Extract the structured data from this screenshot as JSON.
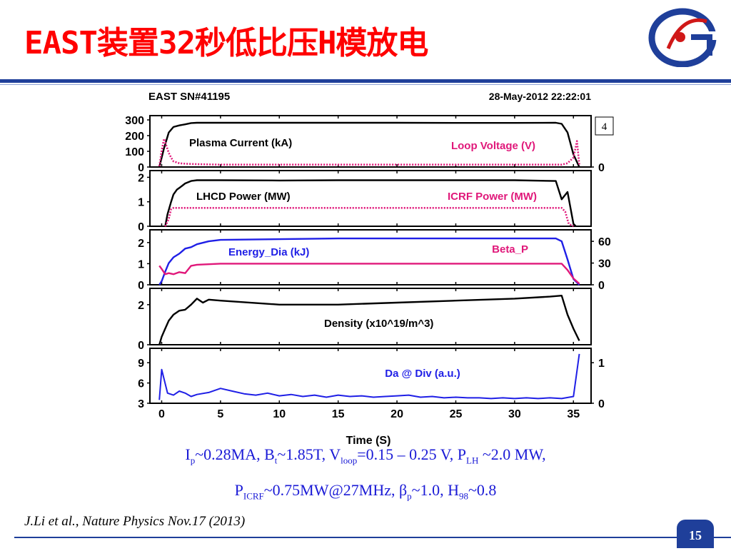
{
  "slide": {
    "title": "EAST装置32秒低比压H模放电",
    "page_number": "15",
    "citation": "J.Li et al., Nature Physics Nov.17 (2013)",
    "caption_line1": [
      {
        "t": "I"
      },
      {
        "t": "p",
        "sub": true
      },
      {
        "t": "~0.28MA, B"
      },
      {
        "t": "t",
        "sub": true
      },
      {
        "t": "~1.85T, V"
      },
      {
        "t": "loop",
        "sub": true
      },
      {
        "t": "=0.15 – 0.25 V, P"
      },
      {
        "t": "LH",
        "sub": true
      },
      {
        "t": " ~2.0 MW,"
      }
    ],
    "caption_line2": [
      {
        "t": "P"
      },
      {
        "t": "ICRF",
        "sub": true
      },
      {
        "t": "~0.75MW@27MHz, β"
      },
      {
        "t": "p",
        "sub": true
      },
      {
        "t": "~1.0, H"
      },
      {
        "t": "98",
        "sub": true
      },
      {
        "t": "~0.8"
      }
    ],
    "colors": {
      "title": "#ff0000",
      "accent": "#1f3f9a",
      "caption": "#1a1ad6",
      "black": "#000000",
      "magenta": "#e0187a",
      "blue": "#1f1fe6"
    }
  },
  "chart_data": {
    "type": "line",
    "header_left": "EAST SN#41195",
    "header_right": "28-May-2012 22:22:01",
    "corner_label": "4",
    "xlabel": "Time (S)",
    "xlim": [
      -1,
      36.5
    ],
    "x_ticks": [
      "0",
      "5",
      "10",
      "15",
      "20",
      "25",
      "30",
      "35"
    ],
    "panels": [
      {
        "left_ticks": [
          "300",
          "200",
          "100",
          "0"
        ],
        "left_range": [
          0,
          300
        ],
        "right_ticks": [
          "0"
        ],
        "right_range": [
          0,
          1
        ],
        "series": [
          {
            "name": "Plasma Current (kA)",
            "color": "#000000",
            "axis": "left",
            "style": "solid",
            "x": [
              -0.2,
              0.2,
              0.6,
              1.0,
              1.5,
              2.0,
              2.5,
              3.0,
              5,
              10,
              15,
              20,
              25,
              30,
              33.5,
              34.0,
              34.5,
              35.0,
              35.5
            ],
            "y": [
              0,
              120,
              220,
              255,
              265,
              272,
              280,
              282,
              282,
              282,
              282,
              282,
              281,
              281,
              282,
              275,
              220,
              80,
              0
            ]
          },
          {
            "name": "Loop Voltage (V)",
            "color": "#e0187a",
            "axis": "right",
            "style": "dotted",
            "x": [
              -0.2,
              0.0,
              0.2,
              0.4,
              0.6,
              0.8,
              1.0,
              1.5,
              2.0,
              3,
              5,
              10,
              15,
              20,
              25,
              30,
              34,
              34.5,
              35.0,
              35.3,
              35.5
            ],
            "y": [
              0.02,
              0.35,
              0.6,
              0.45,
              0.3,
              0.2,
              0.12,
              0.08,
              0.07,
              0.06,
              0.05,
              0.05,
              0.05,
              0.05,
              0.05,
              0.05,
              0.05,
              0.08,
              0.2,
              0.55,
              0.05
            ]
          }
        ]
      },
      {
        "left_ticks": [
          "2",
          "1",
          "0"
        ],
        "left_range": [
          0,
          2.1
        ],
        "right_ticks": [],
        "right_range": [
          0,
          2.1
        ],
        "series": [
          {
            "name": "LHCD Power (MW)",
            "color": "#000000",
            "axis": "left",
            "style": "solid",
            "x": [
              0.3,
              0.5,
              0.8,
              1.0,
              1.3,
              1.6,
              2.0,
              2.5,
              3,
              5,
              10,
              15,
              20,
              25,
              30,
              33.5,
              34.0,
              34.5,
              35.0,
              35.2
            ],
            "y": [
              0,
              0.5,
              1.0,
              1.3,
              1.5,
              1.6,
              1.75,
              1.85,
              1.88,
              1.88,
              1.87,
              1.88,
              1.88,
              1.88,
              1.88,
              1.85,
              1.1,
              1.4,
              0.1,
              0
            ]
          },
          {
            "name": "ICRF Power (MW)",
            "color": "#e0187a",
            "axis": "left",
            "style": "dotted",
            "x": [
              0.3,
              0.6,
              0.8,
              1.0,
              5,
              10,
              15,
              20,
              25,
              30,
              34.0,
              34.3,
              34.6,
              35.0
            ],
            "y": [
              0,
              0.3,
              0.7,
              0.75,
              0.75,
              0.75,
              0.75,
              0.75,
              0.75,
              0.75,
              0.75,
              0.6,
              0.1,
              0
            ]
          }
        ]
      },
      {
        "left_ticks": [
          "2",
          "1",
          "0"
        ],
        "left_range": [
          0,
          2.4
        ],
        "right_ticks": [
          "60",
          "30",
          "0"
        ],
        "right_range": [
          0,
          70
        ],
        "series": [
          {
            "name": "Energy_Dia (kJ)",
            "color": "#1f1fe6",
            "axis": "right",
            "style": "solid",
            "x": [
              -0.2,
              0.0,
              0.3,
              0.6,
              1.0,
              1.5,
              2.0,
              2.5,
              3,
              4,
              5,
              10,
              15,
              20,
              25,
              30,
              33.5,
              34.0,
              34.5,
              35.0,
              35.5
            ],
            "y": [
              0,
              5,
              18,
              30,
              38,
              43,
              50,
              52,
              56,
              60,
              62,
              63,
              64,
              64,
              64,
              64,
              64,
              60,
              35,
              8,
              0
            ]
          },
          {
            "name": "Beta_P",
            "color": "#e0187a",
            "axis": "left",
            "style": "solid",
            "x": [
              -0.2,
              0.0,
              0.3,
              0.6,
              1.0,
              1.5,
              2.0,
              2.5,
              3,
              5,
              10,
              15,
              20,
              25,
              30,
              34.0,
              34.5,
              35.0,
              35.5
            ],
            "y": [
              0.9,
              0.75,
              0.5,
              0.55,
              0.5,
              0.6,
              0.55,
              0.9,
              0.95,
              1.0,
              1.0,
              1.0,
              1.0,
              1.0,
              1.0,
              1.0,
              0.7,
              0.3,
              0.05
            ]
          }
        ]
      },
      {
        "left_ticks": [
          "2",
          "0"
        ],
        "left_range": [
          0,
          2.6
        ],
        "right_ticks": [],
        "right_range": [
          0,
          2.6
        ],
        "series": [
          {
            "name": "Density (x10^19/m^3)",
            "color": "#000000",
            "axis": "left",
            "style": "solid",
            "x": [
              -0.2,
              0.0,
              0.3,
              0.6,
              1.0,
              1.5,
              2.0,
              2.5,
              3.0,
              3.5,
              4,
              5,
              10,
              15,
              20,
              25,
              30,
              33,
              34,
              34.5,
              35.0,
              35.5
            ],
            "y": [
              0,
              0.4,
              0.8,
              1.2,
              1.5,
              1.7,
              1.75,
              2.0,
              2.3,
              2.1,
              2.25,
              2.2,
              2.0,
              2.0,
              2.1,
              2.2,
              2.3,
              2.4,
              2.45,
              1.5,
              0.8,
              0.2
            ]
          }
        ]
      },
      {
        "left_ticks": [
          "9",
          "6",
          "3"
        ],
        "left_range": [
          3,
          10.5
        ],
        "right_ticks": [
          "1",
          "0"
        ],
        "right_range": [
          0,
          1.25
        ],
        "series": [
          {
            "name": "Da @ Div (a.u.)",
            "color": "#1f1fe6",
            "axis": "left",
            "style": "spiky",
            "x": [
              -0.2,
              0,
              0.5,
              1,
              1.5,
              2,
              2.5,
              3,
              4,
              5,
              6,
              7,
              8,
              9,
              10,
              11,
              12,
              13,
              14,
              15,
              16,
              17,
              18,
              19,
              20,
              21,
              22,
              23,
              24,
              25,
              26,
              27,
              28,
              29,
              30,
              31,
              32,
              33,
              34,
              35,
              35.5
            ],
            "y": [
              3.5,
              8,
              4.5,
              4.2,
              4.8,
              4.5,
              4.0,
              4.3,
              4.6,
              5.2,
              4.8,
              4.4,
              4.2,
              4.5,
              4.1,
              4.3,
              4.0,
              4.2,
              3.9,
              4.2,
              4.0,
              4.1,
              3.9,
              4.0,
              4.1,
              4.2,
              3.9,
              4.0,
              3.8,
              3.9,
              3.8,
              3.8,
              3.7,
              3.8,
              3.7,
              3.8,
              3.7,
              3.8,
              3.7,
              4.0,
              10.3
            ]
          }
        ]
      }
    ]
  }
}
